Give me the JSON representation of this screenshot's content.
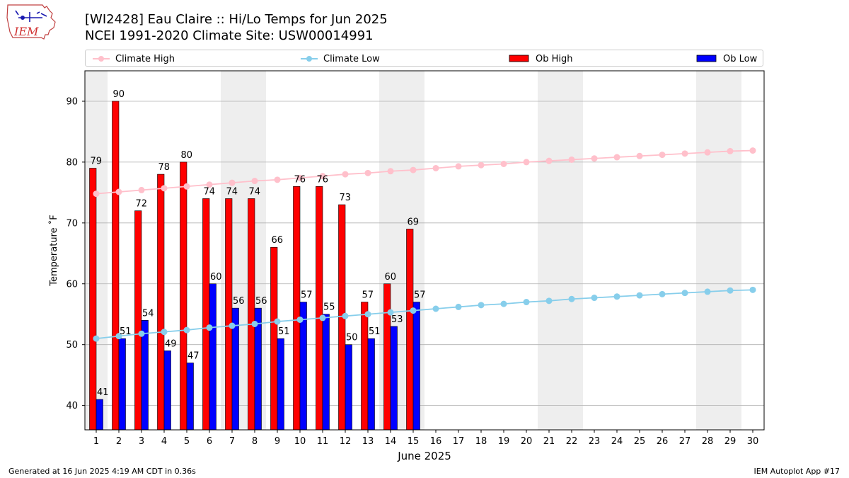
{
  "logo": {
    "text": "IEM"
  },
  "header": {
    "title": "[WI2428] Eau Claire :: Hi/Lo Temps for Jun 2025",
    "subtitle": "NCEI 1991-2020 Climate Site: USW00014991"
  },
  "footer": {
    "left": "Generated at 16 Jun 2025 4:19 AM CDT in 0.36s",
    "right": "IEM Autoplot App #17"
  },
  "colors": {
    "climate_high": "#ffc0cb",
    "climate_low": "#87ceeb",
    "ob_high": "#ff0000",
    "ob_low": "#0000ff",
    "weekend_shade": "#eeeeee",
    "grid": "#b0b0b0"
  },
  "chart_data": {
    "type": "bar",
    "xlabel": "June 2025",
    "ylabel": "Temperature ˚F",
    "ylim": [
      36,
      95
    ],
    "yticks": [
      40,
      50,
      60,
      70,
      80,
      90
    ],
    "grid": "horizontal",
    "legend_placement": "top",
    "days": [
      1,
      2,
      3,
      4,
      5,
      6,
      7,
      8,
      9,
      10,
      11,
      12,
      13,
      14,
      15,
      16,
      17,
      18,
      19,
      20,
      21,
      22,
      23,
      24,
      25,
      26,
      27,
      28,
      29,
      30
    ],
    "weekend_days": [
      1,
      7,
      8,
      14,
      15,
      21,
      22,
      28,
      29
    ],
    "series": [
      {
        "name": "Climate High",
        "kind": "line",
        "values": [
          74.8,
          75.1,
          75.4,
          75.7,
          76.0,
          76.3,
          76.6,
          76.9,
          77.1,
          77.4,
          77.7,
          78.0,
          78.2,
          78.5,
          78.7,
          79.0,
          79.3,
          79.5,
          79.7,
          80.0,
          80.2,
          80.4,
          80.6,
          80.8,
          81.0,
          81.2,
          81.4,
          81.6,
          81.8,
          81.9
        ]
      },
      {
        "name": "Climate Low",
        "kind": "line",
        "values": [
          51.0,
          51.4,
          51.8,
          52.1,
          52.4,
          52.8,
          53.1,
          53.4,
          53.8,
          54.1,
          54.4,
          54.7,
          55.0,
          55.3,
          55.6,
          55.9,
          56.2,
          56.5,
          56.7,
          57.0,
          57.2,
          57.5,
          57.7,
          57.9,
          58.1,
          58.3,
          58.5,
          58.7,
          58.9,
          59.0
        ]
      },
      {
        "name": "Ob High",
        "kind": "bar",
        "values": [
          79,
          90,
          72,
          78,
          80,
          74,
          74,
          74,
          66,
          76,
          76,
          73,
          57,
          60,
          69
        ]
      },
      {
        "name": "Ob Low",
        "kind": "bar",
        "values": [
          41,
          51,
          54,
          49,
          47,
          60,
          56,
          56,
          51,
          57,
          55,
          50,
          51,
          53,
          57
        ]
      }
    ]
  }
}
